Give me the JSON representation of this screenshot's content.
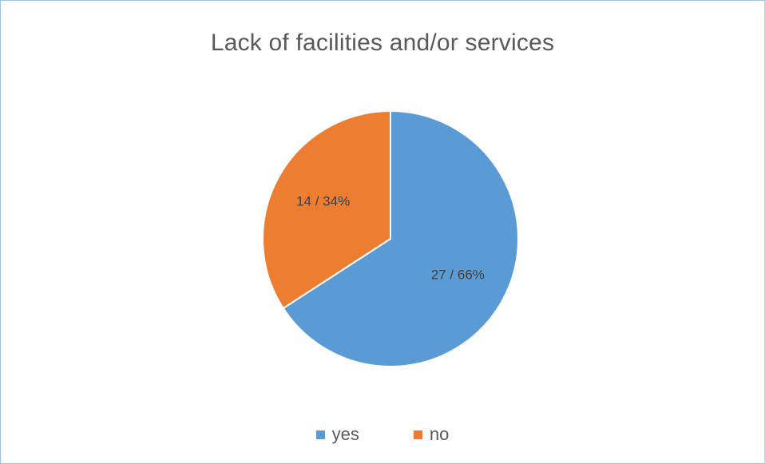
{
  "chart_data": {
    "type": "pie",
    "title": "Lack of facilities and/or services",
    "slices": [
      {
        "name": "yes",
        "value": 27,
        "percent": 66,
        "label": "27 / 66%",
        "color": "#5b9bd5"
      },
      {
        "name": "no",
        "value": 14,
        "percent": 34,
        "label": "14 / 34%",
        "color": "#ed7d31"
      }
    ],
    "start_angle_deg": 0,
    "direction": "clockwise",
    "legend": {
      "position": "bottom",
      "entries": [
        "yes",
        "no"
      ]
    }
  }
}
